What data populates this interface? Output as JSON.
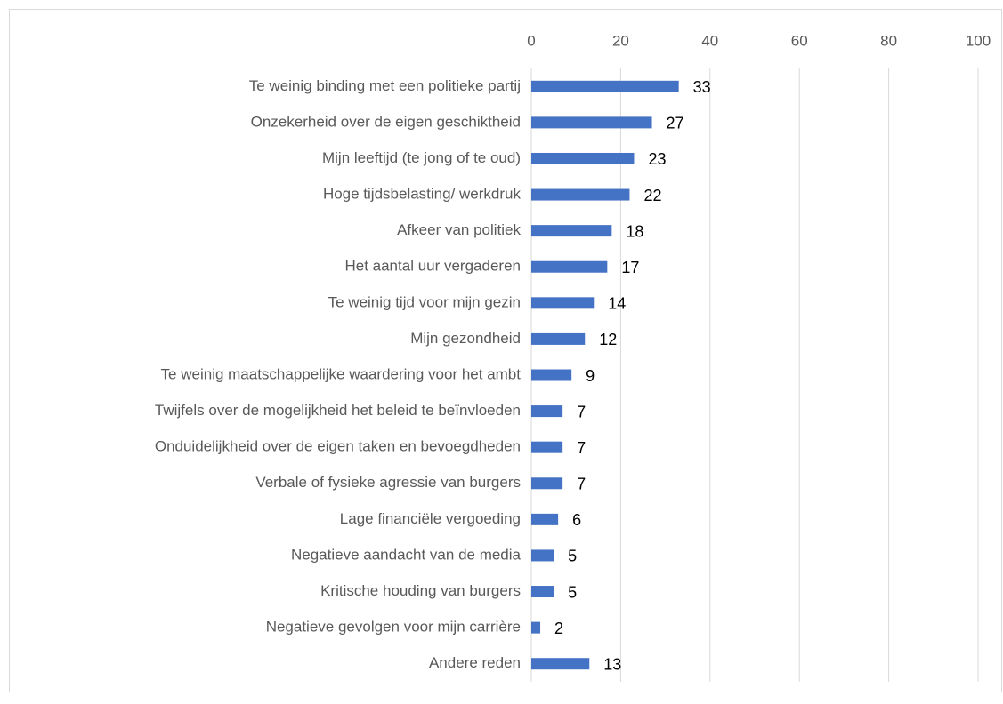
{
  "chart_data": {
    "type": "barh",
    "categories": [
      "Te weinig binding met een politieke partij",
      "Onzekerheid over de eigen geschiktheid",
      "Mijn leeftijd (te jong of te oud)",
      "Hoge tijdsbelasting/ werkdruk",
      "Afkeer van politiek",
      "Het aantal uur vergaderen",
      "Te weinig tijd voor mijn gezin",
      "Mijn gezondheid",
      "Te weinig maatschappelijke waardering voor het ambt",
      "Twijfels over de mogelijkheid het beleid te beïnvloeden",
      "Onduidelijkheid over de eigen taken en bevoegdheden",
      "Verbale of fysieke agressie van burgers",
      "Lage financiële vergoeding",
      "Negatieve aandacht van de media",
      "Kritische houding van burgers",
      "Negatieve gevolgen voor mijn carrière",
      "Andere reden"
    ],
    "values": [
      33,
      27,
      23,
      22,
      18,
      17,
      14,
      12,
      9,
      7,
      7,
      7,
      6,
      5,
      5,
      2,
      13
    ],
    "color": "#4472c4",
    "xlim": [
      0,
      100
    ],
    "xticks": [
      0,
      20,
      40,
      60,
      80,
      100
    ],
    "grid": true
  }
}
